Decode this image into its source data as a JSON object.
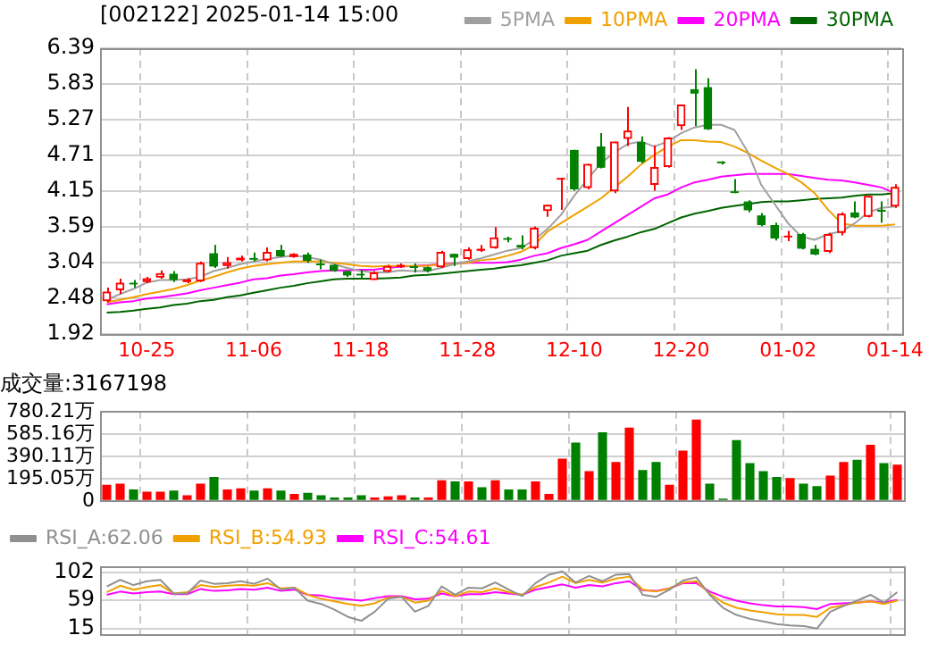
{
  "chart_data": [
    {
      "type": "candlestick",
      "title": "[002122] 2025-01-14 15:00",
      "legend": "top right",
      "grid": true,
      "categories": [
        null,
        null,
        null,
        "10-25",
        null,
        null,
        null,
        null,
        null,
        null,
        null,
        "11-06",
        null,
        null,
        null,
        null,
        null,
        null,
        null,
        "11-18",
        null,
        null,
        null,
        null,
        null,
        null,
        null,
        "11-28",
        null,
        null,
        null,
        null,
        null,
        null,
        null,
        "12-10",
        null,
        null,
        null,
        null,
        null,
        null,
        null,
        "12-20",
        null,
        null,
        null,
        null,
        null,
        null,
        null,
        "01-02",
        null,
        null,
        null,
        null,
        null,
        null,
        null,
        "01-14"
      ],
      "ylim": [
        1.92,
        6.39
      ],
      "yticks": [
        1.92,
        2.48,
        3.04,
        3.59,
        4.15,
        4.71,
        5.27,
        5.83,
        6.39
      ],
      "ohlc": [
        [
          2.43,
          2.64,
          2.41,
          2.58
        ],
        [
          2.6,
          2.78,
          2.54,
          2.72
        ],
        [
          2.7,
          2.76,
          2.64,
          2.69
        ],
        [
          2.73,
          2.81,
          2.71,
          2.79
        ],
        [
          2.8,
          2.91,
          2.78,
          2.87
        ],
        [
          2.86,
          2.9,
          2.73,
          2.76
        ],
        [
          2.73,
          2.79,
          2.71,
          2.77
        ],
        [
          2.74,
          3.05,
          2.73,
          3.03
        ],
        [
          3.18,
          3.31,
          2.95,
          2.97
        ],
        [
          2.98,
          3.12,
          2.94,
          3.04
        ],
        [
          3.07,
          3.14,
          3.05,
          3.11
        ],
        [
          3.1,
          3.19,
          3.05,
          3.08
        ],
        [
          3.07,
          3.27,
          3.05,
          3.2
        ],
        [
          3.23,
          3.31,
          3.12,
          3.13
        ],
        [
          3.12,
          3.18,
          3.11,
          3.17
        ],
        [
          3.16,
          3.19,
          3.03,
          3.06
        ],
        [
          3.0,
          3.08,
          2.93,
          2.99
        ],
        [
          3.0,
          3.01,
          2.89,
          2.9
        ],
        [
          2.9,
          2.91,
          2.81,
          2.83
        ],
        [
          2.84,
          2.92,
          2.79,
          2.83
        ],
        [
          2.76,
          2.9,
          2.76,
          2.88
        ],
        [
          2.89,
          3.0,
          2.88,
          2.98
        ],
        [
          2.96,
          3.02,
          2.95,
          3.0
        ],
        [
          2.97,
          3.02,
          2.88,
          2.95
        ],
        [
          2.96,
          2.97,
          2.88,
          2.9
        ],
        [
          2.96,
          3.22,
          2.95,
          3.2
        ],
        [
          3.17,
          3.17,
          2.98,
          3.11
        ],
        [
          3.09,
          3.27,
          3.08,
          3.24
        ],
        [
          3.22,
          3.31,
          3.2,
          3.25
        ],
        [
          3.26,
          3.59,
          3.25,
          3.43
        ],
        [
          3.4,
          3.44,
          3.35,
          3.39
        ],
        [
          3.31,
          3.46,
          3.24,
          3.27
        ],
        [
          3.26,
          3.6,
          3.24,
          3.58
        ],
        [
          3.84,
          3.94,
          3.75,
          3.94
        ],
        [
          4.33,
          4.36,
          3.86,
          4.36
        ],
        [
          4.8,
          4.8,
          4.16,
          4.18
        ],
        [
          4.2,
          4.58,
          4.18,
          4.58
        ],
        [
          4.85,
          5.06,
          4.51,
          4.52
        ],
        [
          4.15,
          4.93,
          4.12,
          4.93
        ],
        [
          4.97,
          5.47,
          4.86,
          5.1
        ],
        [
          4.92,
          5.01,
          4.59,
          4.61
        ],
        [
          4.25,
          4.87,
          4.16,
          4.53
        ],
        [
          4.53,
          5.0,
          4.52,
          4.99
        ],
        [
          5.17,
          5.51,
          5.11,
          5.51
        ],
        [
          5.75,
          6.06,
          5.17,
          5.68
        ],
        [
          5.78,
          5.92,
          5.11,
          5.12
        ],
        [
          4.6,
          4.62,
          4.57,
          4.59
        ],
        [
          4.13,
          4.34,
          4.12,
          4.12
        ],
        [
          3.99,
          4.01,
          3.82,
          3.85
        ],
        [
          3.77,
          3.81,
          3.6,
          3.62
        ],
        [
          3.62,
          3.66,
          3.38,
          3.41
        ],
        [
          3.43,
          3.53,
          3.37,
          3.44
        ],
        [
          3.48,
          3.5,
          3.24,
          3.25
        ],
        [
          3.25,
          3.31,
          3.15,
          3.16
        ],
        [
          3.2,
          3.5,
          3.18,
          3.48
        ],
        [
          3.5,
          3.82,
          3.46,
          3.8
        ],
        [
          3.82,
          3.99,
          3.73,
          3.74
        ],
        [
          3.75,
          4.08,
          3.74,
          4.08
        ],
        [
          3.85,
          3.99,
          3.66,
          3.83
        ],
        [
          3.91,
          4.26,
          3.89,
          4.22
        ]
      ],
      "series": [
        {
          "name": "5PMA",
          "type": "line",
          "color": "#a0a0a0",
          "values": [
            2.45,
            2.54,
            2.62,
            2.72,
            2.76,
            2.76,
            2.77,
            2.81,
            2.9,
            2.95,
            3.01,
            3.05,
            3.09,
            3.12,
            3.14,
            3.12,
            3.08,
            3.01,
            2.95,
            2.9,
            2.88,
            2.88,
            2.91,
            2.9,
            2.9,
            2.95,
            3.01,
            3.05,
            3.1,
            3.16,
            3.22,
            3.26,
            3.39,
            3.56,
            3.78,
            4.08,
            4.34,
            4.59,
            4.76,
            4.89,
            4.93,
            4.85,
            4.93,
            5.06,
            5.15,
            5.19,
            5.19,
            5.11,
            4.76,
            4.25,
            3.95,
            3.65,
            3.44,
            3.39,
            3.48,
            3.52,
            3.65,
            3.82,
            3.89,
            3.91
          ]
        },
        {
          "name": "10PMA",
          "type": "line",
          "color": "#f0a000",
          "values": [
            2.41,
            2.45,
            2.49,
            2.54,
            2.58,
            2.62,
            2.68,
            2.75,
            2.81,
            2.88,
            2.94,
            2.98,
            3.01,
            3.03,
            3.05,
            3.05,
            3.05,
            3.03,
            3.01,
            2.98,
            2.97,
            2.98,
            2.98,
            2.98,
            2.98,
            3.01,
            3.01,
            3.03,
            3.07,
            3.09,
            3.14,
            3.2,
            3.31,
            3.52,
            3.65,
            3.78,
            3.91,
            4.04,
            4.21,
            4.38,
            4.57,
            4.72,
            4.85,
            4.95,
            4.95,
            4.93,
            4.92,
            4.85,
            4.75,
            4.63,
            4.52,
            4.42,
            4.29,
            4.12,
            3.86,
            3.65,
            3.61,
            3.61,
            3.61,
            3.63
          ]
        },
        {
          "name": "20PMA",
          "type": "line",
          "color": "#ff00ff",
          "values": [
            2.38,
            2.41,
            2.43,
            2.47,
            2.49,
            2.52,
            2.55,
            2.6,
            2.64,
            2.68,
            2.72,
            2.77,
            2.79,
            2.83,
            2.85,
            2.88,
            2.9,
            2.91,
            2.91,
            2.92,
            2.92,
            2.95,
            2.97,
            2.98,
            2.99,
            3.01,
            3.02,
            3.03,
            3.03,
            3.03,
            3.04,
            3.08,
            3.14,
            3.18,
            3.26,
            3.32,
            3.39,
            3.52,
            3.65,
            3.78,
            3.91,
            4.04,
            4.1,
            4.21,
            4.29,
            4.33,
            4.38,
            4.4,
            4.42,
            4.42,
            4.42,
            4.42,
            4.39,
            4.36,
            4.33,
            4.32,
            4.29,
            4.25,
            4.21,
            4.12
          ]
        },
        {
          "name": "30PMA",
          "type": "line",
          "color": "#006400",
          "values": [
            2.25,
            2.26,
            2.28,
            2.31,
            2.33,
            2.37,
            2.39,
            2.43,
            2.45,
            2.49,
            2.52,
            2.56,
            2.6,
            2.64,
            2.67,
            2.71,
            2.74,
            2.77,
            2.78,
            2.78,
            2.78,
            2.79,
            2.8,
            2.83,
            2.84,
            2.86,
            2.88,
            2.9,
            2.92,
            2.94,
            2.97,
            2.99,
            3.03,
            3.07,
            3.14,
            3.18,
            3.22,
            3.31,
            3.38,
            3.44,
            3.51,
            3.56,
            3.65,
            3.74,
            3.8,
            3.84,
            3.89,
            3.92,
            3.95,
            3.98,
            3.99,
            3.99,
            4.01,
            4.03,
            4.04,
            4.05,
            4.08,
            4.1,
            4.1,
            4.12
          ]
        }
      ]
    },
    {
      "type": "bar",
      "title": "成交量:3167198",
      "grid": true,
      "tick_labels": "y",
      "categories": [
        null,
        null,
        null,
        null,
        null,
        null,
        null,
        null,
        null,
        null,
        null,
        null,
        null,
        null,
        null,
        null,
        null,
        null,
        null,
        null,
        null,
        null,
        null,
        null,
        null,
        null,
        null,
        null,
        null,
        null,
        null,
        null,
        null,
        null,
        null,
        null,
        null,
        null,
        null,
        null,
        null,
        null,
        null,
        null,
        null,
        null,
        null,
        null,
        null,
        null,
        null,
        null,
        null,
        null,
        null,
        null,
        null,
        null,
        null,
        null
      ],
      "ylim": [
        0,
        780.21
      ],
      "yticks": [
        0,
        {
          "value": 195.05,
          "label": "195.05万"
        },
        {
          "value": 390.11,
          "label": "390.11万"
        },
        {
          "value": 585.16,
          "label": "585.16万"
        },
        {
          "value": 780.21,
          "label": "780.21万"
        }
      ],
      "values": [
        140,
        150,
        100,
        80,
        80,
        90,
        50,
        150,
        210,
        100,
        110,
        90,
        110,
        90,
        60,
        70,
        50,
        30,
        30,
        50,
        30,
        40,
        50,
        30,
        30,
        180,
        170,
        170,
        120,
        180,
        100,
        100,
        170,
        60,
        370,
        510,
        260,
        600,
        340,
        640,
        270,
        340,
        140,
        440,
        710,
        150,
        20,
        530,
        330,
        260,
        210,
        200,
        150,
        130,
        220,
        340,
        360,
        490,
        330,
        316.72
      ],
      "colors": [
        "#ff0000",
        "#ff0000",
        "#008000",
        "#ff0000",
        "#ff0000",
        "#008000",
        "#ff0000",
        "#ff0000",
        "#008000",
        "#ff0000",
        "#ff0000",
        "#008000",
        "#ff0000",
        "#008000",
        "#ff0000",
        "#008000",
        "#008000",
        "#008000",
        "#008000",
        "#008000",
        "#ff0000",
        "#ff0000",
        "#ff0000",
        "#008000",
        "#ff0000",
        "#ff0000",
        "#008000",
        "#ff0000",
        "#008000",
        "#ff0000",
        "#008000",
        "#008000",
        "#ff0000",
        "#ff0000",
        "#ff0000",
        "#008000",
        "#ff0000",
        "#008000",
        "#ff0000",
        "#ff0000",
        "#008000",
        "#008000",
        "#ff0000",
        "#ff0000",
        "#ff0000",
        "#008000",
        "#008000",
        "#008000",
        "#008000",
        "#008000",
        "#008000",
        "#ff0000",
        "#008000",
        "#008000",
        "#ff0000",
        "#ff0000",
        "#008000",
        "#ff0000",
        "#008000",
        "#ff0000"
      ]
    },
    {
      "type": "line",
      "grid": true,
      "tick_labels": "y",
      "legend": "top left",
      "categories": [
        null,
        null,
        null,
        null,
        null,
        null,
        null,
        null,
        null,
        null,
        null,
        null,
        null,
        null,
        null,
        null,
        null,
        null,
        null,
        null,
        null,
        null,
        null,
        null,
        null,
        null,
        null,
        null,
        null,
        null,
        null,
        null,
        null,
        null,
        null,
        null,
        null,
        null,
        null,
        null,
        null,
        null,
        null,
        null,
        null,
        null,
        null,
        null,
        null,
        null,
        null,
        null,
        null,
        null,
        null,
        null,
        null,
        null,
        null,
        null
      ],
      "ylim": [
        7,
        111
      ],
      "yticks": [
        15,
        59,
        102
      ],
      "series": [
        {
          "name": "RSI_A:62.06",
          "color": "#909090",
          "values": [
            80,
            90,
            82,
            88,
            90,
            69,
            69,
            89,
            84,
            85,
            88,
            84,
            92,
            75,
            78,
            58,
            53,
            44,
            33,
            27,
            41,
            61,
            64,
            41,
            50,
            80,
            67,
            78,
            77,
            86,
            75,
            65,
            85,
            98,
            103,
            86,
            96,
            88,
            98,
            99,
            67,
            64,
            75,
            89,
            94,
            67,
            47,
            36,
            30,
            26,
            22,
            20,
            19,
            15,
            41,
            50,
            58,
            67,
            55,
            71
          ]
        },
        {
          "name": "RSI_B:54.93",
          "color": "#f0a000",
          "values": [
            71,
            81,
            75,
            79,
            82,
            69,
            71,
            82,
            79,
            81,
            82,
            81,
            85,
            77,
            78,
            67,
            61,
            57,
            53,
            50,
            54,
            63,
            64,
            55,
            58,
            73,
            65,
            72,
            71,
            77,
            71,
            67,
            79,
            86,
            95,
            85,
            90,
            86,
            92,
            95,
            75,
            72,
            77,
            86,
            88,
            69,
            55,
            47,
            43,
            40,
            37,
            36,
            36,
            33,
            47,
            51,
            55,
            57,
            53,
            58
          ]
        },
        {
          "name": "RSI_C:54.61",
          "color": "#ff00ff",
          "values": [
            67,
            72,
            69,
            71,
            72,
            68,
            68,
            76,
            73,
            74,
            76,
            75,
            78,
            73,
            75,
            67,
            66,
            62,
            60,
            58,
            62,
            65,
            65,
            60,
            61,
            69,
            65,
            68,
            68,
            71,
            69,
            67,
            75,
            79,
            83,
            78,
            82,
            80,
            85,
            88,
            74,
            73,
            77,
            85,
            85,
            72,
            64,
            58,
            54,
            51,
            49,
            49,
            48,
            45,
            53,
            54,
            55,
            57,
            55,
            59
          ]
        }
      ]
    }
  ]
}
